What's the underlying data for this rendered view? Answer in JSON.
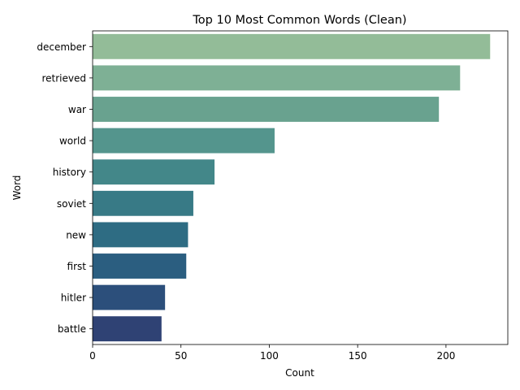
{
  "chart_data": {
    "type": "bar",
    "orientation": "horizontal",
    "title": "Top 10 Most Common Words (Clean)",
    "xlabel": "Count",
    "ylabel": "Word",
    "xlim": [
      0,
      235
    ],
    "xticks": [
      0,
      50,
      100,
      150,
      200
    ],
    "grid": false,
    "legend": "none",
    "categories": [
      "december",
      "retrieved",
      "war",
      "world",
      "history",
      "soviet",
      "new",
      "first",
      "hitler",
      "battle"
    ],
    "values": [
      225,
      208,
      196,
      103,
      69,
      57,
      54,
      53,
      41,
      39
    ],
    "colors": [
      "#93bc98",
      "#7eb095",
      "#69a28f",
      "#54958d",
      "#438789",
      "#387a86",
      "#2e6c83",
      "#2b5e80",
      "#2c4f7b",
      "#2f4274"
    ]
  }
}
